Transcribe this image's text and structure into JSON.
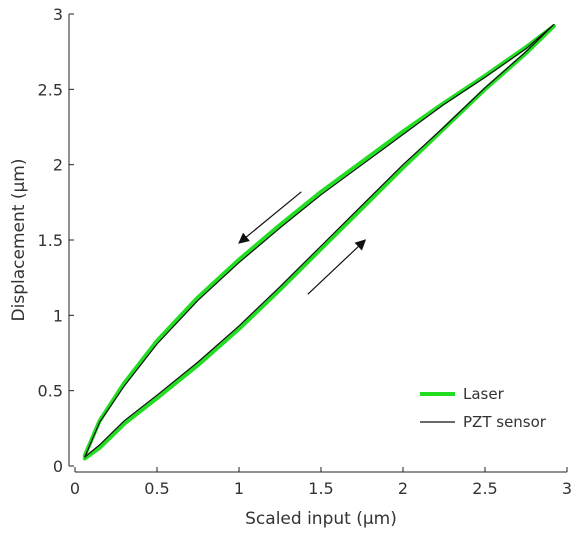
{
  "chart_data": {
    "type": "line",
    "title": "",
    "xlabel": "Scaled input (µm)",
    "ylabel": "Displacement (µm)",
    "xlim": [
      0,
      3
    ],
    "ylim": [
      0,
      3
    ],
    "xticks": [
      "0",
      "0.5",
      "1",
      "1.5",
      "2",
      "2.5",
      "3"
    ],
    "yticks": [
      "0",
      "0.5",
      "1",
      "1.5",
      "2",
      "2.5",
      "3"
    ],
    "grid": false,
    "legend_position": "bottom-right",
    "series": [
      {
        "name": "Laser",
        "color": "#22dd22",
        "x": [
          0.06,
          0.15,
          0.3,
          0.5,
          0.75,
          1.0,
          1.25,
          1.5,
          1.75,
          2.0,
          2.25,
          2.5,
          2.75,
          2.92,
          2.75,
          2.5,
          2.25,
          2.0,
          1.75,
          1.5,
          1.25,
          1.0,
          0.75,
          0.5,
          0.3,
          0.15,
          0.06
        ],
        "y": [
          0.05,
          0.12,
          0.28,
          0.45,
          0.67,
          0.91,
          1.17,
          1.44,
          1.71,
          1.98,
          2.24,
          2.5,
          2.74,
          2.92,
          2.78,
          2.59,
          2.41,
          2.22,
          2.02,
          1.82,
          1.6,
          1.37,
          1.12,
          0.83,
          0.55,
          0.3,
          0.07
        ]
      },
      {
        "name": "PZT sensor",
        "color": "#111111",
        "x": [
          0.06,
          0.15,
          0.3,
          0.5,
          0.75,
          1.0,
          1.25,
          1.5,
          1.75,
          2.0,
          2.25,
          2.5,
          2.75,
          2.92,
          2.75,
          2.5,
          2.25,
          2.0,
          1.75,
          1.5,
          1.25,
          1.0,
          0.75,
          0.5,
          0.3,
          0.15,
          0.06
        ],
        "y": [
          0.06,
          0.14,
          0.3,
          0.47,
          0.69,
          0.93,
          1.19,
          1.46,
          1.73,
          2.0,
          2.25,
          2.51,
          2.75,
          2.93,
          2.77,
          2.58,
          2.4,
          2.2,
          2.0,
          1.8,
          1.58,
          1.35,
          1.1,
          0.81,
          0.53,
          0.29,
          0.06
        ]
      }
    ],
    "arrows": [
      {
        "direction": "decreasing",
        "from": [
          1.38,
          1.82
        ],
        "to": [
          1.0,
          1.48
        ]
      },
      {
        "direction": "increasing",
        "from": [
          1.42,
          1.14
        ],
        "to": [
          1.77,
          1.5
        ]
      }
    ]
  }
}
